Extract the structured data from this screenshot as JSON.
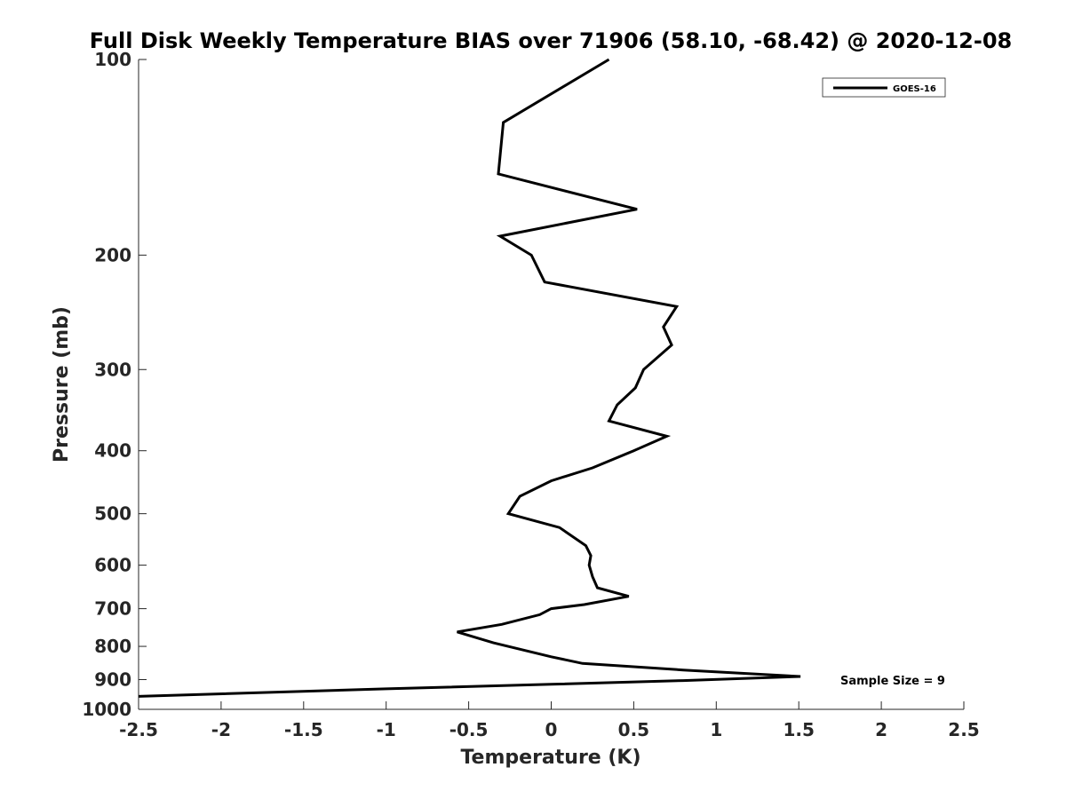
{
  "chart_data": {
    "type": "line",
    "title": "Full Disk Weekly Temperature BIAS over 71906 (58.10, -68.42) @ 2020-12-08",
    "xlabel": "Temperature (K)",
    "ylabel": "Pressure (mb)",
    "xlim": [
      -2.5,
      2.5
    ],
    "ylim": [
      100,
      1000
    ],
    "y_scale": "log",
    "y_reversed": true,
    "x_ticks": [
      -2.5,
      -2,
      -1.5,
      -1,
      -0.5,
      0,
      0.5,
      1,
      1.5,
      2,
      2.5
    ],
    "x_tick_labels": [
      "-2.5",
      "-2",
      "-1.5",
      "-1",
      "-0.5",
      "0",
      "0.5",
      "1",
      "1.5",
      "2",
      "2.5"
    ],
    "y_ticks": [
      100,
      200,
      300,
      400,
      500,
      600,
      700,
      800,
      900,
      1000
    ],
    "y_tick_labels": [
      "100",
      "200",
      "300",
      "400",
      "500",
      "600",
      "700",
      "800",
      "900",
      "1000"
    ],
    "grid": false,
    "legend_position": "top-right",
    "annotation": "Sample Size = 9",
    "series": [
      {
        "name": "GOES-16",
        "color": "#000000",
        "points": [
          {
            "x": 0.35,
            "y": 100
          },
          {
            "x": -0.29,
            "y": 125
          },
          {
            "x": -0.32,
            "y": 150
          },
          {
            "x": 0.52,
            "y": 170
          },
          {
            "x": -0.31,
            "y": 187
          },
          {
            "x": -0.12,
            "y": 200
          },
          {
            "x": -0.04,
            "y": 220
          },
          {
            "x": 0.76,
            "y": 240
          },
          {
            "x": 0.68,
            "y": 258
          },
          {
            "x": 0.73,
            "y": 275
          },
          {
            "x": 0.56,
            "y": 300
          },
          {
            "x": 0.51,
            "y": 320
          },
          {
            "x": 0.4,
            "y": 340
          },
          {
            "x": 0.35,
            "y": 360
          },
          {
            "x": 0.7,
            "y": 380
          },
          {
            "x": 0.5,
            "y": 400
          },
          {
            "x": 0.25,
            "y": 425
          },
          {
            "x": 0.0,
            "y": 445
          },
          {
            "x": -0.19,
            "y": 470
          },
          {
            "x": -0.26,
            "y": 500
          },
          {
            "x": 0.05,
            "y": 525
          },
          {
            "x": 0.21,
            "y": 560
          },
          {
            "x": 0.24,
            "y": 580
          },
          {
            "x": 0.23,
            "y": 600
          },
          {
            "x": 0.25,
            "y": 625
          },
          {
            "x": 0.28,
            "y": 650
          },
          {
            "x": 0.47,
            "y": 670
          },
          {
            "x": 0.2,
            "y": 690
          },
          {
            "x": 0.0,
            "y": 700
          },
          {
            "x": -0.07,
            "y": 715
          },
          {
            "x": -0.3,
            "y": 740
          },
          {
            "x": -0.57,
            "y": 760
          },
          {
            "x": -0.35,
            "y": 790
          },
          {
            "x": 0.0,
            "y": 830
          },
          {
            "x": 0.19,
            "y": 850
          },
          {
            "x": 0.8,
            "y": 870
          },
          {
            "x": 1.51,
            "y": 890
          },
          {
            "x": 0.8,
            "y": 903
          },
          {
            "x": 0.0,
            "y": 915
          },
          {
            "x": -1.0,
            "y": 930
          },
          {
            "x": -2.5,
            "y": 955
          }
        ]
      }
    ]
  }
}
